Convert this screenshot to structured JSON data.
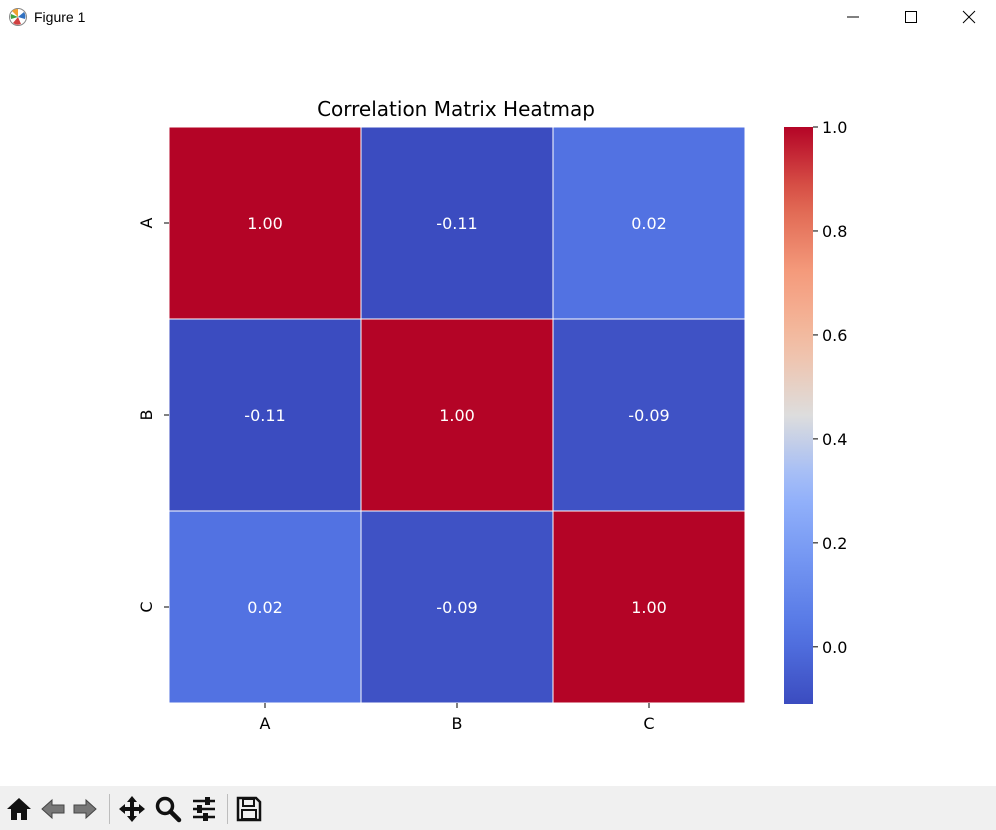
{
  "window": {
    "title": "Figure 1",
    "icons": {
      "app": "matplotlib-icon",
      "minimize": "minimize-icon",
      "maximize": "maximize-icon",
      "close": "close-icon"
    }
  },
  "toolbar": {
    "items": [
      {
        "name": "home-button",
        "icon": "home-icon"
      },
      {
        "name": "back-button",
        "icon": "back-arrow-icon"
      },
      {
        "name": "forward-button",
        "icon": "forward-arrow-icon"
      },
      {
        "name": "pan-button",
        "icon": "move-icon"
      },
      {
        "name": "zoom-button",
        "icon": "zoom-icon"
      },
      {
        "name": "configure-subplots-button",
        "icon": "sliders-icon"
      },
      {
        "name": "save-button",
        "icon": "save-icon"
      }
    ]
  },
  "chart_data": {
    "type": "heatmap",
    "title": "Correlation Matrix Heatmap",
    "x_categories": [
      "A",
      "B",
      "C"
    ],
    "y_categories": [
      "A",
      "B",
      "C"
    ],
    "values": [
      [
        1.0,
        -0.11,
        0.02
      ],
      [
        -0.11,
        1.0,
        -0.09
      ],
      [
        0.02,
        -0.09,
        1.0
      ]
    ],
    "annotations": [
      [
        "1.00",
        "-0.11",
        "0.02"
      ],
      [
        "-0.11",
        "1.00",
        "-0.09"
      ],
      [
        "0.02",
        "-0.09",
        "1.00"
      ]
    ],
    "colormap": "coolwarm",
    "colorbar": {
      "range": [
        -0.11,
        1.0
      ],
      "ticks": [
        0.0,
        0.2,
        0.4,
        0.6,
        0.8,
        1.0
      ],
      "tick_labels": [
        "0.0",
        "0.2",
        "0.4",
        "0.6",
        "0.8",
        "1.0"
      ]
    },
    "grid_line_color": "#ffffff"
  }
}
